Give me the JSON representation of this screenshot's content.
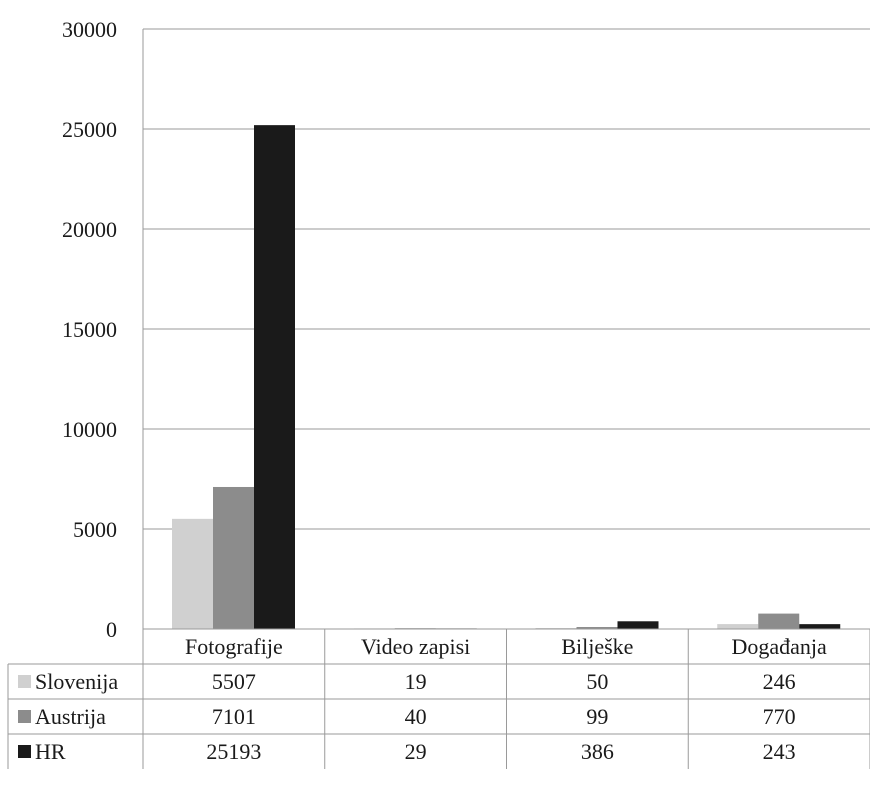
{
  "chart_data": {
    "type": "bar",
    "categories": [
      "Fotografije",
      "Video zapisi",
      "Bilješke",
      "Događanja"
    ],
    "series": [
      {
        "name": "Slovenija",
        "color": "#d0d0d0",
        "values": [
          5507,
          19,
          50,
          246
        ],
        "labels": [
          "5507",
          "19",
          "50",
          "246"
        ]
      },
      {
        "name": "Austrija",
        "color": "#8c8c8c",
        "values": [
          7101,
          40,
          99,
          770
        ],
        "labels": [
          "7101",
          "40",
          "99",
          "770"
        ]
      },
      {
        "name": "HR",
        "color": "#1a1a1a",
        "values": [
          25193,
          29,
          386,
          243
        ],
        "labels": [
          "25193",
          "29",
          "386",
          "243"
        ]
      }
    ],
    "ylim": [
      0,
      30000
    ],
    "yticks": [
      "0",
      "5000",
      "10000",
      "15000",
      "20000",
      "25000",
      "30000"
    ],
    "ytick_values": [
      0,
      5000,
      10000,
      15000,
      20000,
      25000,
      30000
    ],
    "grid": true,
    "legend": "data-table"
  }
}
